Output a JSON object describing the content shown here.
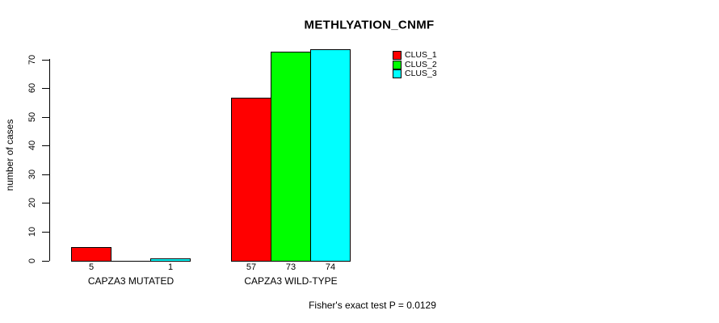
{
  "chart_data": {
    "type": "bar",
    "title": "METHLYATION_CNMF",
    "ylabel": "number of cases",
    "xlabel": "",
    "ylim": [
      0,
      74
    ],
    "yticks": [
      0,
      10,
      20,
      30,
      40,
      50,
      60,
      70
    ],
    "grid": false,
    "legend_position": "top-right-outside-bars",
    "categories": [
      "CAPZA3 MUTATED",
      "CAPZA3 WILD-TYPE"
    ],
    "series": [
      {
        "name": "CLUS_1",
        "color": "#ff0000",
        "values": [
          5,
          57
        ]
      },
      {
        "name": "CLUS_2",
        "color": "#00ff00",
        "values": [
          0,
          73
        ]
      },
      {
        "name": "CLUS_3",
        "color": "#00ffff",
        "values": [
          1,
          74
        ]
      }
    ],
    "bar_value_labels": [
      [
        "5",
        "",
        "1"
      ],
      [
        "57",
        "73",
        "74"
      ]
    ],
    "annotation": "Fisher's exact test P = 0.0129"
  },
  "colors": {
    "background": "#ffffff",
    "text": "#000000",
    "bar_border": "#000000",
    "axis": "#000000"
  }
}
